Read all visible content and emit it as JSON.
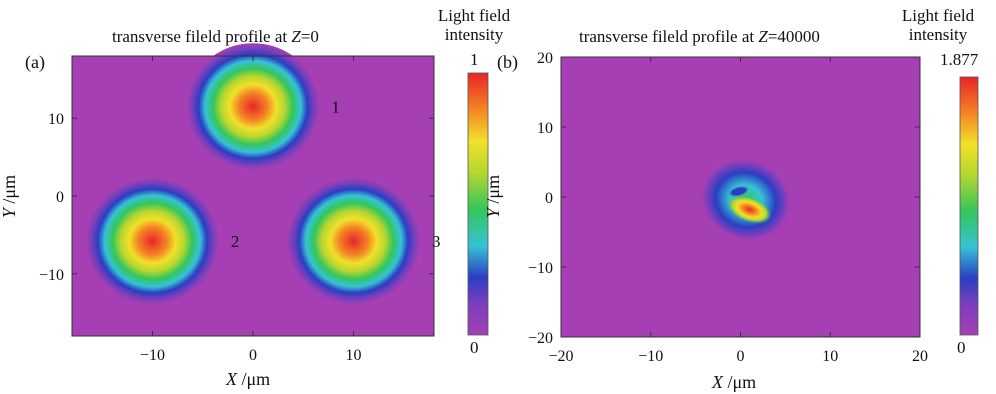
{
  "chart_data": [
    {
      "type": "heatmap",
      "panel": "(a)",
      "title_prefix": "transverse fileld profile at ",
      "title_var": "Z",
      "title_suffix": "=0",
      "xlabel_var": "X",
      "xlabel_unit": " /μm",
      "ylabel_var": "Y",
      "ylabel_unit": " /μm",
      "xlim": [
        -18,
        18
      ],
      "ylim": [
        -18,
        18
      ],
      "xticks": [
        -10,
        0,
        10
      ],
      "yticks": [
        -10,
        0,
        10
      ],
      "xtick_labels": [
        "−10",
        "0",
        "10"
      ],
      "ytick_labels": [
        "−10",
        "0",
        "10"
      ],
      "colorbar": {
        "title": "Light field\nintensity",
        "min": 0,
        "max": 1,
        "min_label": "0",
        "max_label": "1"
      },
      "beams": [
        {
          "label": "1",
          "x": 0,
          "y": 11.5,
          "peak": 1
        },
        {
          "label": "2",
          "x": -10,
          "y": -5.8,
          "peak": 1
        },
        {
          "label": "3",
          "x": 10,
          "y": -5.8,
          "peak": 1
        }
      ]
    },
    {
      "type": "heatmap",
      "panel": "(b)",
      "title_prefix": "transverse fileld profile at ",
      "title_var": "Z",
      "title_suffix": "=40000",
      "xlabel_var": "X",
      "xlabel_unit": " /μm",
      "ylabel_var": "Y",
      "ylabel_unit": " /μm",
      "xlim": [
        -20,
        20
      ],
      "ylim": [
        -20,
        20
      ],
      "xticks": [
        -20,
        -10,
        0,
        10,
        20
      ],
      "yticks": [
        -20,
        -10,
        0,
        10,
        20
      ],
      "xtick_labels": [
        "−20",
        "−10",
        "0",
        "10",
        "20"
      ],
      "ytick_labels": [
        "−20",
        "−10",
        "0",
        "10",
        "20"
      ],
      "colorbar": {
        "title": "Light field\nintensity",
        "min": 0,
        "max": 1.877,
        "min_label": "0",
        "max_label": "1.877"
      },
      "beams": [
        {
          "label": "",
          "x": 0.6,
          "y": -0.4,
          "peak": 0.8
        },
        {
          "label": "",
          "x": 1.0,
          "y": -1.8,
          "peak": 1.877
        },
        {
          "label": "",
          "x": -0.2,
          "y": 0.8,
          "peak": 0.4
        }
      ]
    }
  ]
}
